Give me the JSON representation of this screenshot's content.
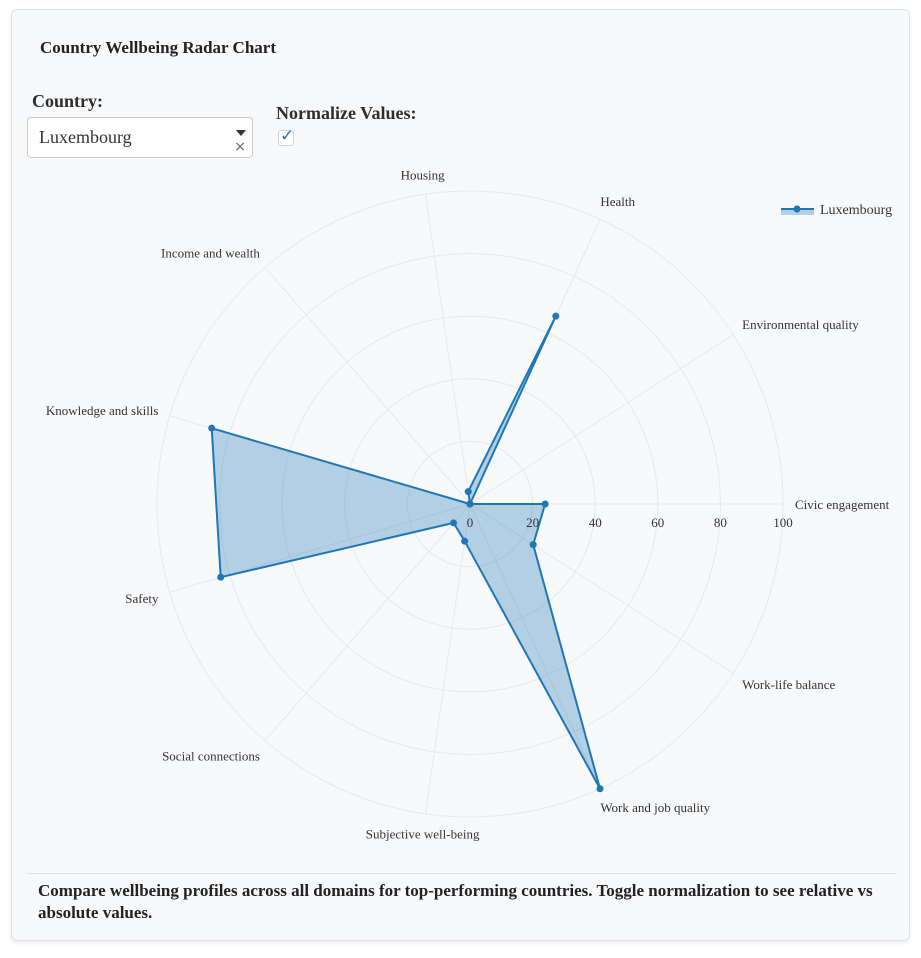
{
  "page": {
    "title": "Country Wellbeing Radar Chart",
    "country_label": "Country:",
    "country_value": "Luxembourg",
    "clear_glyph": "×",
    "normalize_label": "Normalize Values:",
    "normalize_checked": true,
    "check_glyph": "✓",
    "footer": "Compare wellbeing profiles across all domains for top-performing countries. Toggle normalization to see relative vs absolute values."
  },
  "colors": {
    "series_line": "#1f77b4",
    "series_fill": "rgba(31,119,180,0.32)",
    "grid": "#e6e9ee",
    "accent_check": "#2a7ab0"
  },
  "icons": {
    "dropdown": "chevron-down-icon",
    "clear": "close-icon",
    "checkbox": "check-icon"
  },
  "chart_data": {
    "type": "radar",
    "title": "",
    "radial_range": [
      0,
      100
    ],
    "radial_ticks": [
      "0",
      "20",
      "40",
      "60",
      "80",
      "100"
    ],
    "grid": true,
    "legend_position": "top-right",
    "categories": [
      "Civic engagement",
      "Environmental quality",
      "Health",
      "Housing",
      "Income and wealth",
      "Knowledge and skills",
      "Safety",
      "Social connections",
      "Subjective well-being",
      "Work and job quality",
      "Work-life balance"
    ],
    "series": [
      {
        "name": "Luxembourg",
        "values": [
          24,
          0,
          66,
          4,
          0,
          86,
          83,
          8,
          12,
          100,
          24
        ]
      }
    ]
  }
}
